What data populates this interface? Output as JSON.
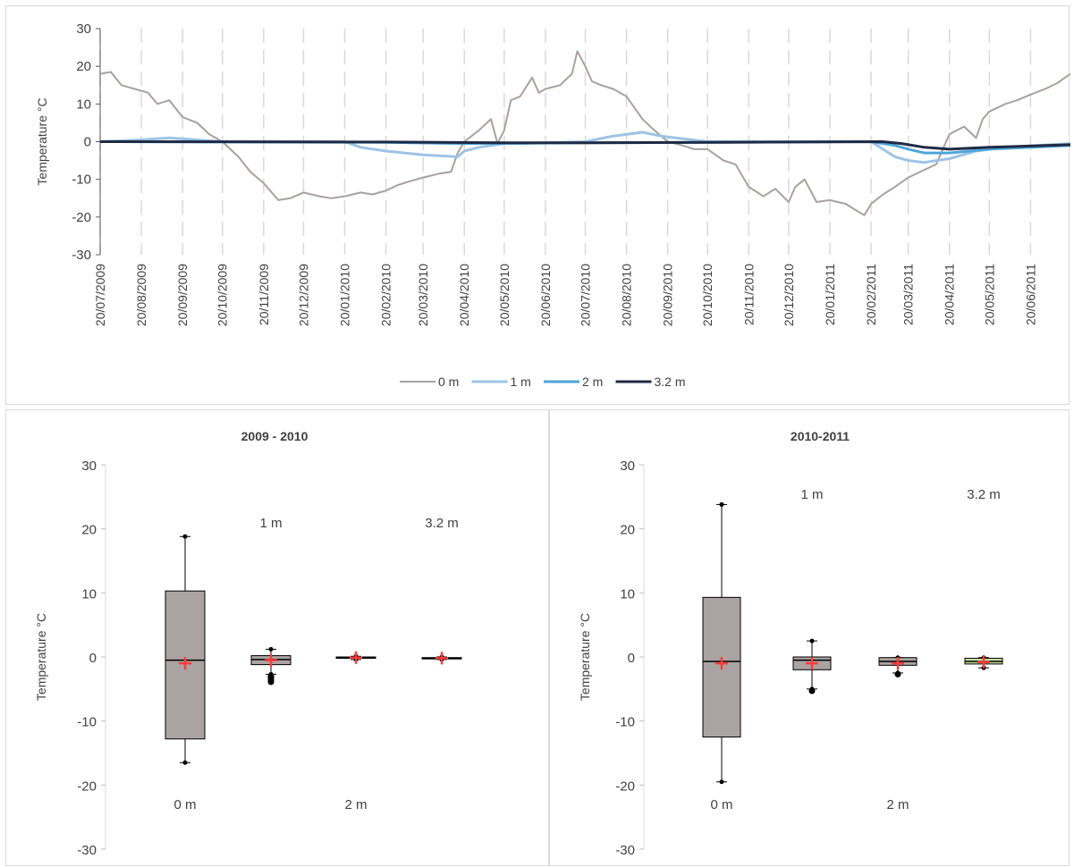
{
  "chart_data": [
    {
      "type": "line",
      "ylabel": "Temperature °C",
      "ylim": [
        -30,
        30
      ],
      "yticks": [
        -30,
        -20,
        -10,
        0,
        10,
        20,
        30
      ],
      "x_tick_labels": [
        "20/07/2009",
        "20/08/2009",
        "20/09/2009",
        "20/10/2009",
        "20/11/2009",
        "20/12/2009",
        "20/01/2010",
        "20/02/2010",
        "20/03/2010",
        "20/04/2010",
        "20/05/2010",
        "20/06/2010",
        "20/07/2010",
        "20/08/2010",
        "20/09/2010",
        "20/10/2010",
        "20/11/2010",
        "20/12/2010",
        "20/01/2011",
        "20/02/2011",
        "20/03/2011",
        "20/04/2011",
        "20/05/2011",
        "20/06/2011"
      ],
      "x_range": [
        "20/07/2009",
        "20/07/2011"
      ],
      "grid": "vertical dashed",
      "legend_position": "bottom",
      "series": [
        {
          "name": "0 m",
          "color": "#a9a19b",
          "points": [
            [
              "20/07/2009",
              18
            ],
            [
              "28/07/2009",
              18.5
            ],
            [
              "05/08/2009",
              15
            ],
            [
              "15/08/2009",
              14
            ],
            [
              "25/08/2009",
              13
            ],
            [
              "01/09/2009",
              10
            ],
            [
              "10/09/2009",
              11
            ],
            [
              "20/09/2009",
              6.5
            ],
            [
              "01/10/2009",
              5
            ],
            [
              "10/10/2009",
              2
            ],
            [
              "20/10/2009",
              0
            ],
            [
              "01/11/2009",
              -4
            ],
            [
              "10/11/2009",
              -8
            ],
            [
              "20/11/2009",
              -11
            ],
            [
              "01/12/2009",
              -15.5
            ],
            [
              "10/12/2009",
              -15
            ],
            [
              "20/12/2009",
              -13.5
            ],
            [
              "01/01/2010",
              -14.5
            ],
            [
              "10/01/2010",
              -15
            ],
            [
              "20/01/2010",
              -14.5
            ],
            [
              "01/02/2010",
              -13.5
            ],
            [
              "10/02/2010",
              -14
            ],
            [
              "20/02/2010",
              -13
            ],
            [
              "01/03/2010",
              -11.5
            ],
            [
              "10/03/2010",
              -10.5
            ],
            [
              "20/03/2010",
              -9.5
            ],
            [
              "01/04/2010",
              -8.5
            ],
            [
              "10/04/2010",
              -8
            ],
            [
              "15/04/2010",
              -3
            ],
            [
              "20/04/2010",
              0
            ],
            [
              "01/05/2010",
              3
            ],
            [
              "10/05/2010",
              6
            ],
            [
              "15/05/2010",
              -0.5
            ],
            [
              "20/05/2010",
              3
            ],
            [
              "25/05/2010",
              11
            ],
            [
              "01/06/2010",
              12
            ],
            [
              "10/06/2010",
              17
            ],
            [
              "15/06/2010",
              13
            ],
            [
              "20/06/2010",
              14
            ],
            [
              "01/07/2010",
              15
            ],
            [
              "10/07/2010",
              18
            ],
            [
              "14/07/2010",
              24
            ],
            [
              "20/07/2010",
              20
            ],
            [
              "25/07/2010",
              16
            ],
            [
              "01/08/2010",
              15
            ],
            [
              "10/08/2010",
              14
            ],
            [
              "20/08/2010",
              12
            ],
            [
              "01/09/2010",
              6
            ],
            [
              "10/09/2010",
              3
            ],
            [
              "20/09/2010",
              0
            ],
            [
              "01/10/2010",
              -1
            ],
            [
              "10/10/2010",
              -2
            ],
            [
              "20/10/2010",
              -2
            ],
            [
              "01/11/2010",
              -5
            ],
            [
              "10/11/2010",
              -6
            ],
            [
              "20/11/2010",
              -12
            ],
            [
              "01/12/2010",
              -14.5
            ],
            [
              "10/12/2010",
              -12.5
            ],
            [
              "20/12/2010",
              -16
            ],
            [
              "25/12/2010",
              -12
            ],
            [
              "01/01/2011",
              -10
            ],
            [
              "10/01/2011",
              -16
            ],
            [
              "20/01/2011",
              -15.5
            ],
            [
              "01/02/2011",
              -16.5
            ],
            [
              "10/02/2011",
              -18.5
            ],
            [
              "15/02/2011",
              -19.5
            ],
            [
              "20/02/2011",
              -16.5
            ],
            [
              "01/03/2011",
              -14
            ],
            [
              "10/03/2011",
              -12
            ],
            [
              "20/03/2011",
              -9.5
            ],
            [
              "01/04/2011",
              -7.5
            ],
            [
              "10/04/2011",
              -6
            ],
            [
              "15/04/2011",
              -2
            ],
            [
              "20/04/2011",
              2
            ],
            [
              "01/05/2011",
              4
            ],
            [
              "10/05/2011",
              1
            ],
            [
              "15/05/2011",
              6
            ],
            [
              "20/05/2011",
              8
            ],
            [
              "01/06/2011",
              10
            ],
            [
              "10/06/2011",
              11
            ],
            [
              "20/06/2011",
              12.5
            ],
            [
              "01/07/2011",
              14
            ],
            [
              "10/07/2011",
              15.5
            ],
            [
              "20/07/2011",
              18
            ]
          ]
        },
        {
          "name": "1 m",
          "color": "#9dc3e6",
          "points": [
            [
              "20/07/2009",
              0
            ],
            [
              "20/08/2009",
              0.5
            ],
            [
              "10/09/2009",
              1
            ],
            [
              "20/10/2009",
              0
            ],
            [
              "20/01/2010",
              0
            ],
            [
              "01/02/2010",
              -1.5
            ],
            [
              "20/02/2010",
              -2.5
            ],
            [
              "20/03/2010",
              -3.5
            ],
            [
              "15/04/2010",
              -4
            ],
            [
              "20/04/2010",
              -2.5
            ],
            [
              "01/05/2010",
              -1.5
            ],
            [
              "20/05/2010",
              -0.5
            ],
            [
              "01/06/2010",
              -0.5
            ],
            [
              "20/07/2010",
              0
            ],
            [
              "10/08/2010",
              1.5
            ],
            [
              "01/09/2010",
              2.5
            ],
            [
              "15/09/2010",
              1.5
            ],
            [
              "20/10/2010",
              0
            ],
            [
              "20/01/2011",
              0
            ],
            [
              "20/02/2011",
              0
            ],
            [
              "01/03/2011",
              -2
            ],
            [
              "10/03/2011",
              -4
            ],
            [
              "20/03/2011",
              -5
            ],
            [
              "01/04/2011",
              -5.5
            ],
            [
              "20/04/2011",
              -4.5
            ],
            [
              "10/05/2011",
              -2.5
            ],
            [
              "01/06/2011",
              -1.5
            ],
            [
              "20/07/2011",
              -0.5
            ]
          ]
        },
        {
          "name": "2 m",
          "color": "#4da6d8",
          "points": [
            [
              "20/07/2009",
              0
            ],
            [
              "20/02/2010",
              -0.2
            ],
            [
              "20/04/2010",
              -0.5
            ],
            [
              "20/07/2010",
              -0.3
            ],
            [
              "20/02/2011",
              0
            ],
            [
              "10/03/2011",
              -1
            ],
            [
              "20/03/2011",
              -2
            ],
            [
              "01/04/2011",
              -3
            ],
            [
              "20/04/2011",
              -3
            ],
            [
              "20/05/2011",
              -2
            ],
            [
              "20/07/2011",
              -1
            ]
          ]
        },
        {
          "name": "3.2 m",
          "color": "#1f2a44",
          "points": [
            [
              "20/07/2009",
              0
            ],
            [
              "20/02/2010",
              -0.1
            ],
            [
              "20/05/2010",
              -0.3
            ],
            [
              "20/07/2010",
              -0.3
            ],
            [
              "01/03/2011",
              0
            ],
            [
              "15/03/2011",
              -0.5
            ],
            [
              "01/04/2011",
              -1.5
            ],
            [
              "20/04/2011",
              -2
            ],
            [
              "20/05/2011",
              -1.5
            ],
            [
              "20/07/2011",
              -0.8
            ]
          ]
        }
      ]
    },
    {
      "type": "box",
      "title": "2009 - 2010",
      "ylabel": "Temperature °C",
      "ylim": [
        -30,
        30
      ],
      "yticks": [
        -30,
        -20,
        -10,
        0,
        10,
        20,
        30
      ],
      "boxes": [
        {
          "name": "0 m",
          "fill": "#aaa3a1",
          "min": -16.5,
          "q1": -12.8,
          "median": -0.5,
          "q3": 10.3,
          "max": 18.8,
          "mean": -1.0,
          "outliers": []
        },
        {
          "name": "1 m",
          "fill": "#aaa3a1",
          "min": -2.7,
          "q1": -1.2,
          "median": -0.4,
          "q3": 0.2,
          "max": 1.2,
          "mean": -0.5,
          "outliers": [
            -3.0,
            -3.3,
            -3.6,
            -3.9
          ]
        },
        {
          "name": "2 m",
          "fill": "#aaa3a1",
          "min": -0.4,
          "q1": -0.2,
          "median": -0.1,
          "q3": 0.0,
          "max": 0.1,
          "mean": -0.1,
          "outliers": []
        },
        {
          "name": "3.2 m",
          "fill": "#aaa3a1",
          "min": -0.4,
          "q1": -0.3,
          "median": -0.2,
          "q3": -0.1,
          "max": 0.0,
          "mean": -0.2,
          "outliers": []
        }
      ]
    },
    {
      "type": "box",
      "title": "2010-2011",
      "ylabel": "Temperature °C",
      "ylim": [
        -30,
        30
      ],
      "yticks": [
        -30,
        -20,
        -10,
        0,
        10,
        20,
        30
      ],
      "boxes": [
        {
          "name": "0 m",
          "fill": "#aaa3a1",
          "min": -19.5,
          "q1": -12.5,
          "median": -0.7,
          "q3": 9.3,
          "max": 23.8,
          "mean": -1.0,
          "outliers": []
        },
        {
          "name": "1 m",
          "fill": "#aaa3a1",
          "min": -5.0,
          "q1": -2.0,
          "median": -0.5,
          "q3": 0.0,
          "max": 2.5,
          "mean": -1.0,
          "outliers": [
            -5.3
          ]
        },
        {
          "name": "2 m",
          "fill": "#aaa3a1",
          "min": -2.5,
          "q1": -1.3,
          "median": -0.7,
          "q3": -0.1,
          "max": -0.1,
          "mean": -1.0,
          "outliers": [
            -2.7
          ]
        },
        {
          "name": "3.2 m",
          "fill": "#c5e0a0",
          "min": -1.7,
          "q1": -1.1,
          "median": -0.7,
          "q3": -0.2,
          "max": -0.1,
          "mean": -0.8,
          "outliers": []
        }
      ]
    }
  ]
}
